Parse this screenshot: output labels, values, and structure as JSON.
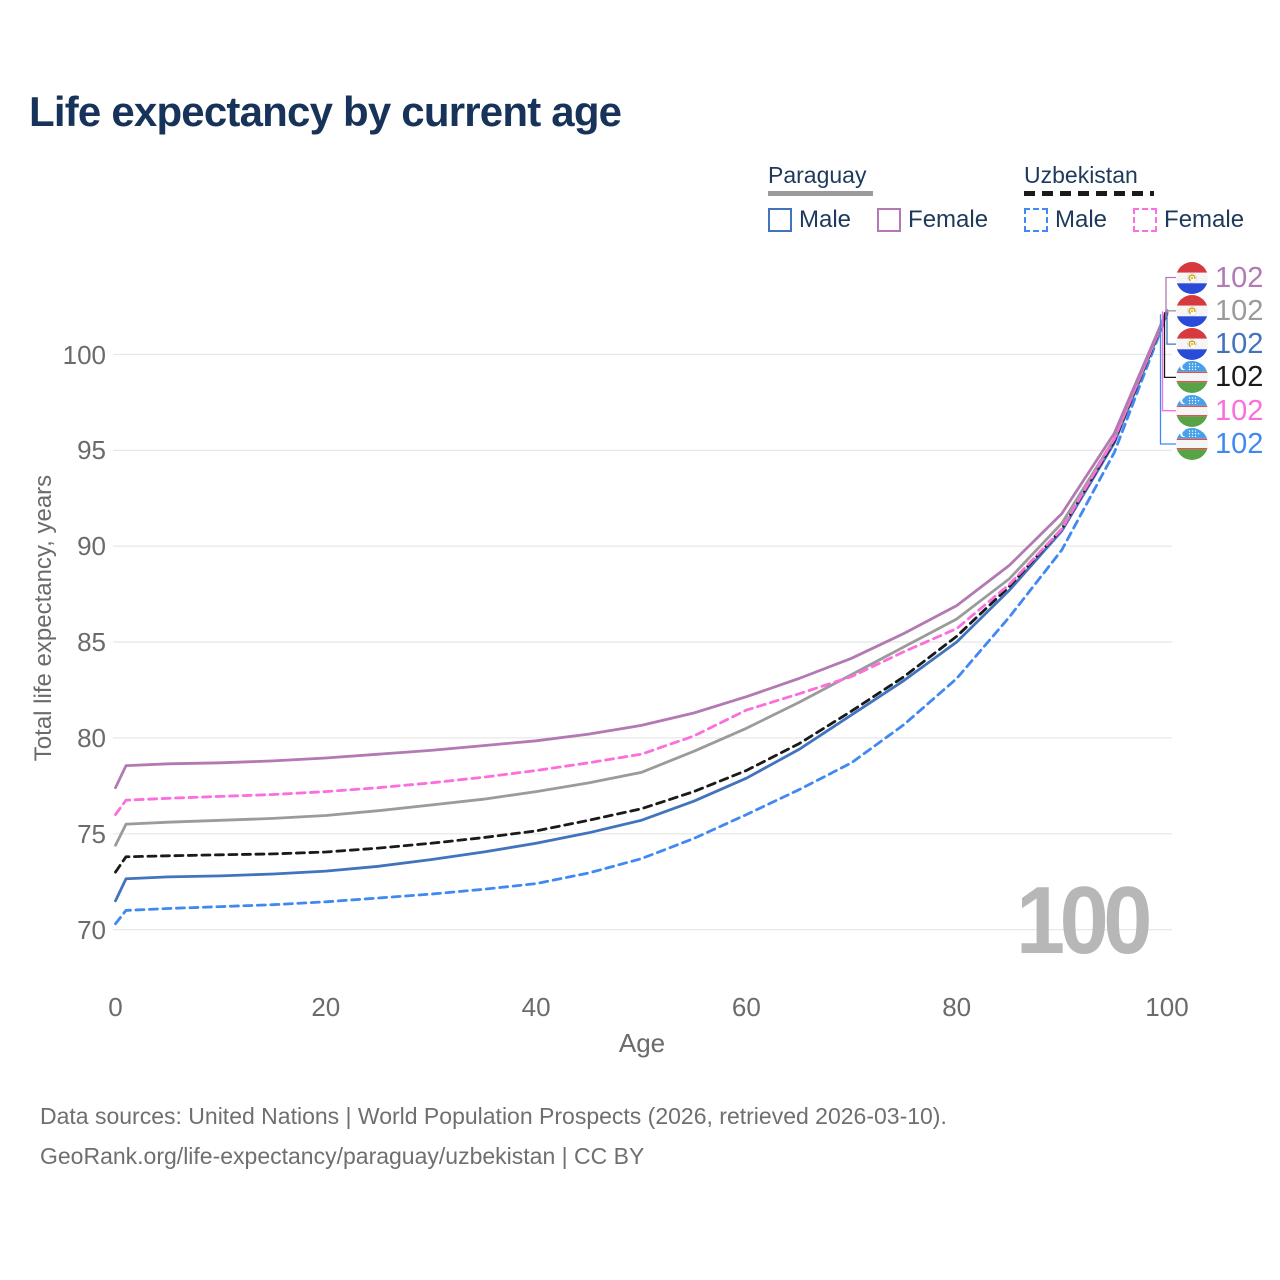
{
  "title": "Life expectancy by current age",
  "watermark": "100",
  "legend": {
    "groups": [
      {
        "country": "Paraguay",
        "line_style": "solid",
        "underline_color": "#9b9b9b",
        "items": [
          {
            "label": "Male",
            "color": "#4273bd",
            "dashed": false
          },
          {
            "label": "Female",
            "color": "#b279b2",
            "dashed": false
          }
        ]
      },
      {
        "country": "Uzbekistan",
        "line_style": "dashed",
        "underline_color": "#1a1a1a",
        "items": [
          {
            "label": "Male",
            "color": "#4189f2",
            "dashed": true
          },
          {
            "label": "Female",
            "color": "#fb6edc",
            "dashed": true
          }
        ]
      }
    ]
  },
  "chart_data": {
    "type": "line",
    "title": "Life expectancy by current age",
    "xlabel": "Age",
    "ylabel": "Total life expectancy, years",
    "xlim": [
      0,
      100
    ],
    "ylim": [
      69.5,
      103
    ],
    "xticks": [
      0,
      20,
      40,
      60,
      80,
      100
    ],
    "yticks": [
      70,
      75,
      80,
      85,
      90,
      95,
      100
    ],
    "grid": "horizontal",
    "legend_position": "top-right",
    "x": [
      0,
      1,
      5,
      10,
      15,
      20,
      25,
      30,
      35,
      40,
      45,
      50,
      55,
      60,
      65,
      70,
      75,
      80,
      85,
      90,
      95,
      100
    ],
    "series": [
      {
        "name": "Paraguay Female",
        "country": "Paraguay",
        "flag": "py",
        "color": "#b279b2",
        "dashed": false,
        "end_label": "102",
        "values": [
          77.4,
          78.55,
          78.65,
          78.7,
          78.8,
          78.95,
          79.15,
          79.35,
          79.6,
          79.85,
          80.2,
          80.65,
          81.3,
          82.15,
          83.1,
          84.15,
          85.45,
          86.9,
          89.0,
          91.7,
          95.9,
          102.3
        ]
      },
      {
        "name": "Paraguay Both sexes",
        "country": "Paraguay",
        "flag": "py",
        "color": "#9b9b9b",
        "dashed": false,
        "end_label": "102",
        "values": [
          74.4,
          75.5,
          75.6,
          75.7,
          75.8,
          75.95,
          76.2,
          76.5,
          76.8,
          77.2,
          77.65,
          78.2,
          79.3,
          80.5,
          81.85,
          83.3,
          84.75,
          86.2,
          88.3,
          91.2,
          95.6,
          102.25
        ]
      },
      {
        "name": "Paraguay Male",
        "country": "Paraguay",
        "flag": "py",
        "color": "#4273bd",
        "dashed": false,
        "end_label": "102",
        "values": [
          71.5,
          72.65,
          72.75,
          72.8,
          72.9,
          73.05,
          73.3,
          73.65,
          74.05,
          74.5,
          75.05,
          75.7,
          76.7,
          77.9,
          79.4,
          81.2,
          83.0,
          85.0,
          87.7,
          90.8,
          95.4,
          102.2
        ]
      },
      {
        "name": "Uzbekistan Both sexes",
        "country": "Uzbekistan",
        "flag": "uz",
        "color": "#1a1a1a",
        "dashed": true,
        "end_label": "102",
        "values": [
          73.0,
          73.8,
          73.85,
          73.9,
          73.95,
          74.05,
          74.25,
          74.5,
          74.8,
          75.15,
          75.7,
          76.3,
          77.2,
          78.3,
          79.7,
          81.4,
          83.2,
          85.3,
          87.9,
          90.9,
          95.5,
          102.2
        ]
      },
      {
        "name": "Uzbekistan Female",
        "country": "Uzbekistan",
        "flag": "uz",
        "color": "#fb6edc",
        "dashed": true,
        "end_label": "102",
        "values": [
          76.0,
          76.75,
          76.85,
          76.95,
          77.05,
          77.2,
          77.4,
          77.65,
          77.95,
          78.3,
          78.7,
          79.15,
          80.1,
          81.45,
          82.3,
          83.2,
          84.5,
          85.7,
          88.0,
          90.9,
          95.6,
          102.25
        ]
      },
      {
        "name": "Uzbekistan Male",
        "country": "Uzbekistan",
        "flag": "uz",
        "color": "#4189f2",
        "dashed": true,
        "end_label": "102",
        "values": [
          70.3,
          71.0,
          71.1,
          71.2,
          71.3,
          71.45,
          71.65,
          71.85,
          72.1,
          72.4,
          72.95,
          73.7,
          74.75,
          76.0,
          77.3,
          78.7,
          80.7,
          83.1,
          86.3,
          89.8,
          94.9,
          102.1
        ]
      }
    ]
  },
  "footer": {
    "line1": "Data sources: United Nations | World Population Prospects (2026, retrieved 2026-03-10).",
    "line2": "GeoRank.org/life-expectancy/paraguay/uzbekistan | CC BY"
  }
}
